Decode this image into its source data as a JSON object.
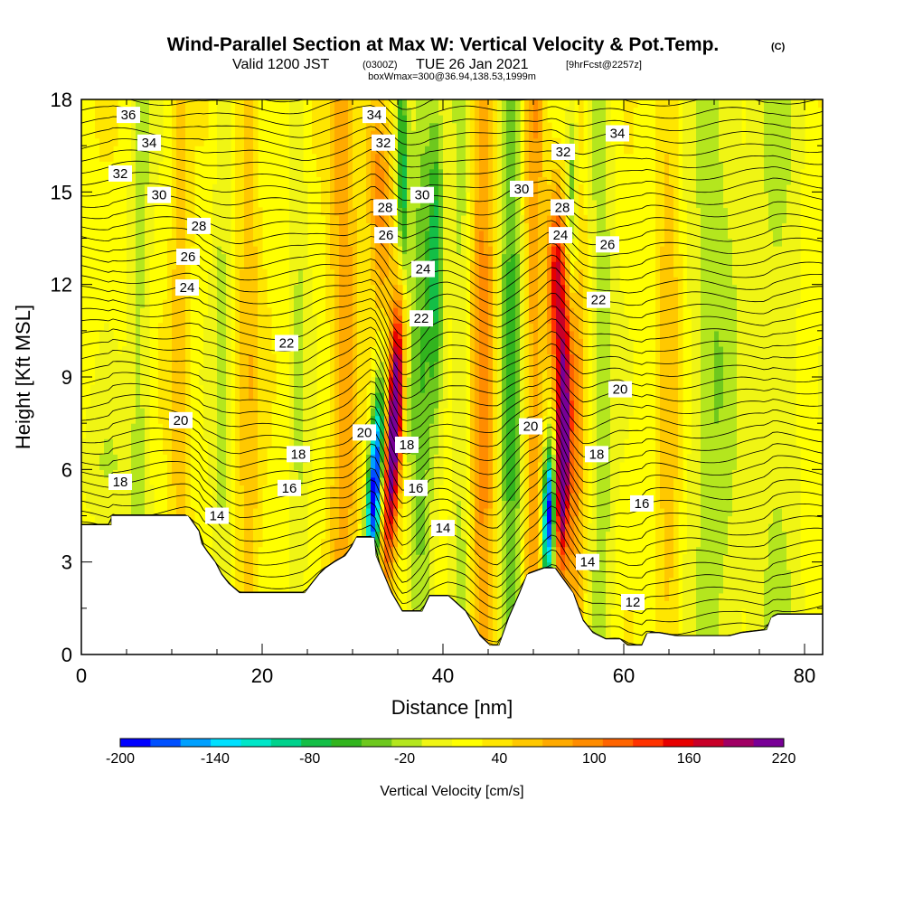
{
  "chart_data": {
    "type": "heatmap",
    "title": "Wind-Parallel Section at Max W: Vertical Velocity & Pot.Temp.",
    "title_mark": "(C)",
    "subtitle_prefix": "Valid 1200 JST",
    "subtitle_utc": "(0300Z)",
    "subtitle_date": "TUE 26 Jan 2021",
    "subtitle_fcst": "[9hrFcst@2257z]",
    "subtitle_line2": "boxWmax=300@36.94,138.53,1999m",
    "xlabel": "Distance [nm]",
    "ylabel": "Height [Kft MSL]",
    "xlim": [
      0,
      82
    ],
    "ylim": [
      0,
      18
    ],
    "x_ticks": [
      "0",
      "20",
      "40",
      "60",
      "80"
    ],
    "x_tick_values": [
      0,
      20,
      40,
      60,
      80
    ],
    "y_ticks": [
      "0",
      "3",
      "6",
      "9",
      "12",
      "15",
      "18"
    ],
    "y_tick_values": [
      0,
      3,
      6,
      9,
      12,
      15,
      18
    ],
    "colorbar": {
      "title": "Vertical Velocity [cm/s]",
      "labels": [
        "-200",
        "-140",
        "-80",
        "-20",
        "40",
        "100",
        "160",
        "220"
      ],
      "min": -200,
      "max": 220,
      "colors": [
        "#0000ff",
        "#0050ff",
        "#00a0ff",
        "#00e0ff",
        "#00e6c8",
        "#00d28c",
        "#14be46",
        "#32b41e",
        "#6ec81e",
        "#b4e61e",
        "#f0f514",
        "#ffff00",
        "#ffe600",
        "#ffc800",
        "#ffaa00",
        "#ff8c00",
        "#ff6400",
        "#ff3200",
        "#e60000",
        "#c80028",
        "#a00064",
        "#780096"
      ]
    },
    "terrain_kft": [
      [
        0,
        4.2
      ],
      [
        3.3,
        4.2
      ],
      [
        3.3,
        4.5
      ],
      [
        11.8,
        4.5
      ],
      [
        13,
        4.0
      ],
      [
        13.3,
        3.6
      ],
      [
        14,
        3.3
      ],
      [
        14.8,
        3.0
      ],
      [
        15.5,
        2.6
      ],
      [
        16.3,
        2.3
      ],
      [
        17.5,
        2.0
      ],
      [
        24.7,
        2.0
      ],
      [
        25.5,
        2.3
      ],
      [
        26.3,
        2.6
      ],
      [
        27,
        2.8
      ],
      [
        28,
        3.0
      ],
      [
        29.2,
        3.2
      ],
      [
        29.9,
        3.5
      ],
      [
        30.4,
        3.8
      ],
      [
        32.4,
        3.8
      ],
      [
        32.6,
        3.2
      ],
      [
        34.3,
        2.0
      ],
      [
        35.5,
        1.4
      ],
      [
        37.7,
        1.4
      ],
      [
        38.5,
        1.9
      ],
      [
        40.6,
        1.9
      ],
      [
        42.5,
        1.4
      ],
      [
        43.3,
        1.0
      ],
      [
        44.1,
        0.6
      ],
      [
        45.2,
        0.3
      ],
      [
        46.2,
        0.3
      ],
      [
        47.3,
        1.2
      ],
      [
        48.5,
        2.0
      ],
      [
        49.3,
        2.6
      ],
      [
        51.2,
        2.8
      ],
      [
        52.4,
        2.8
      ],
      [
        54.4,
        2.0
      ],
      [
        55.5,
        1.1
      ],
      [
        56.6,
        0.7
      ],
      [
        58,
        0.5
      ],
      [
        59.6,
        0.5
      ],
      [
        60.4,
        0.3
      ],
      [
        62,
        0.3
      ],
      [
        62.6,
        0.7
      ],
      [
        63.9,
        0.7
      ],
      [
        65.8,
        0.6
      ],
      [
        67.7,
        0.6
      ],
      [
        70.6,
        0.6
      ],
      [
        71.7,
        0.6
      ],
      [
        73,
        0.7
      ],
      [
        75.8,
        0.8
      ],
      [
        76.3,
        1.2
      ],
      [
        77,
        1.3
      ],
      [
        82,
        1.3
      ]
    ],
    "isentropes_labeled": [
      "12",
      "14",
      "14",
      "14",
      "16",
      "16",
      "16",
      "18",
      "18",
      "18",
      "18",
      "20",
      "20",
      "20",
      "20",
      "22",
      "22",
      "22",
      "24",
      "24",
      "24",
      "26",
      "26",
      "26",
      "28",
      "28",
      "28",
      "30",
      "30",
      "30",
      "32",
      "32",
      "32",
      "34",
      "34",
      "34",
      "36"
    ],
    "isentrope_label_positions": [
      [
        61,
        1.7
      ],
      [
        15,
        4.5
      ],
      [
        40,
        4.1
      ],
      [
        56,
        3.0
      ],
      [
        23,
        5.4
      ],
      [
        37,
        5.4
      ],
      [
        62,
        4.9
      ],
      [
        4.3,
        5.6
      ],
      [
        24,
        6.5
      ],
      [
        36,
        6.8
      ],
      [
        57,
        6.5
      ],
      [
        11,
        7.6
      ],
      [
        31.3,
        7.2
      ],
      [
        49.7,
        7.4
      ],
      [
        59.6,
        8.6
      ],
      [
        22.7,
        10.1
      ],
      [
        37.6,
        10.9
      ],
      [
        57.2,
        11.5
      ],
      [
        11.7,
        11.9
      ],
      [
        37.8,
        12.5
      ],
      [
        53,
        13.6
      ],
      [
        11.8,
        12.9
      ],
      [
        33.7,
        13.6
      ],
      [
        58.2,
        13.3
      ],
      [
        13,
        13.9
      ],
      [
        33.6,
        14.5
      ],
      [
        53.2,
        14.5
      ],
      [
        8.6,
        14.9
      ],
      [
        37.7,
        14.9
      ],
      [
        48.7,
        15.1
      ],
      [
        4.3,
        15.6
      ],
      [
        33.4,
        16.6
      ],
      [
        53.3,
        16.3
      ],
      [
        7.5,
        16.6
      ],
      [
        32.4,
        17.5
      ],
      [
        59.3,
        16.9
      ],
      [
        5.2,
        17.5
      ]
    ]
  }
}
